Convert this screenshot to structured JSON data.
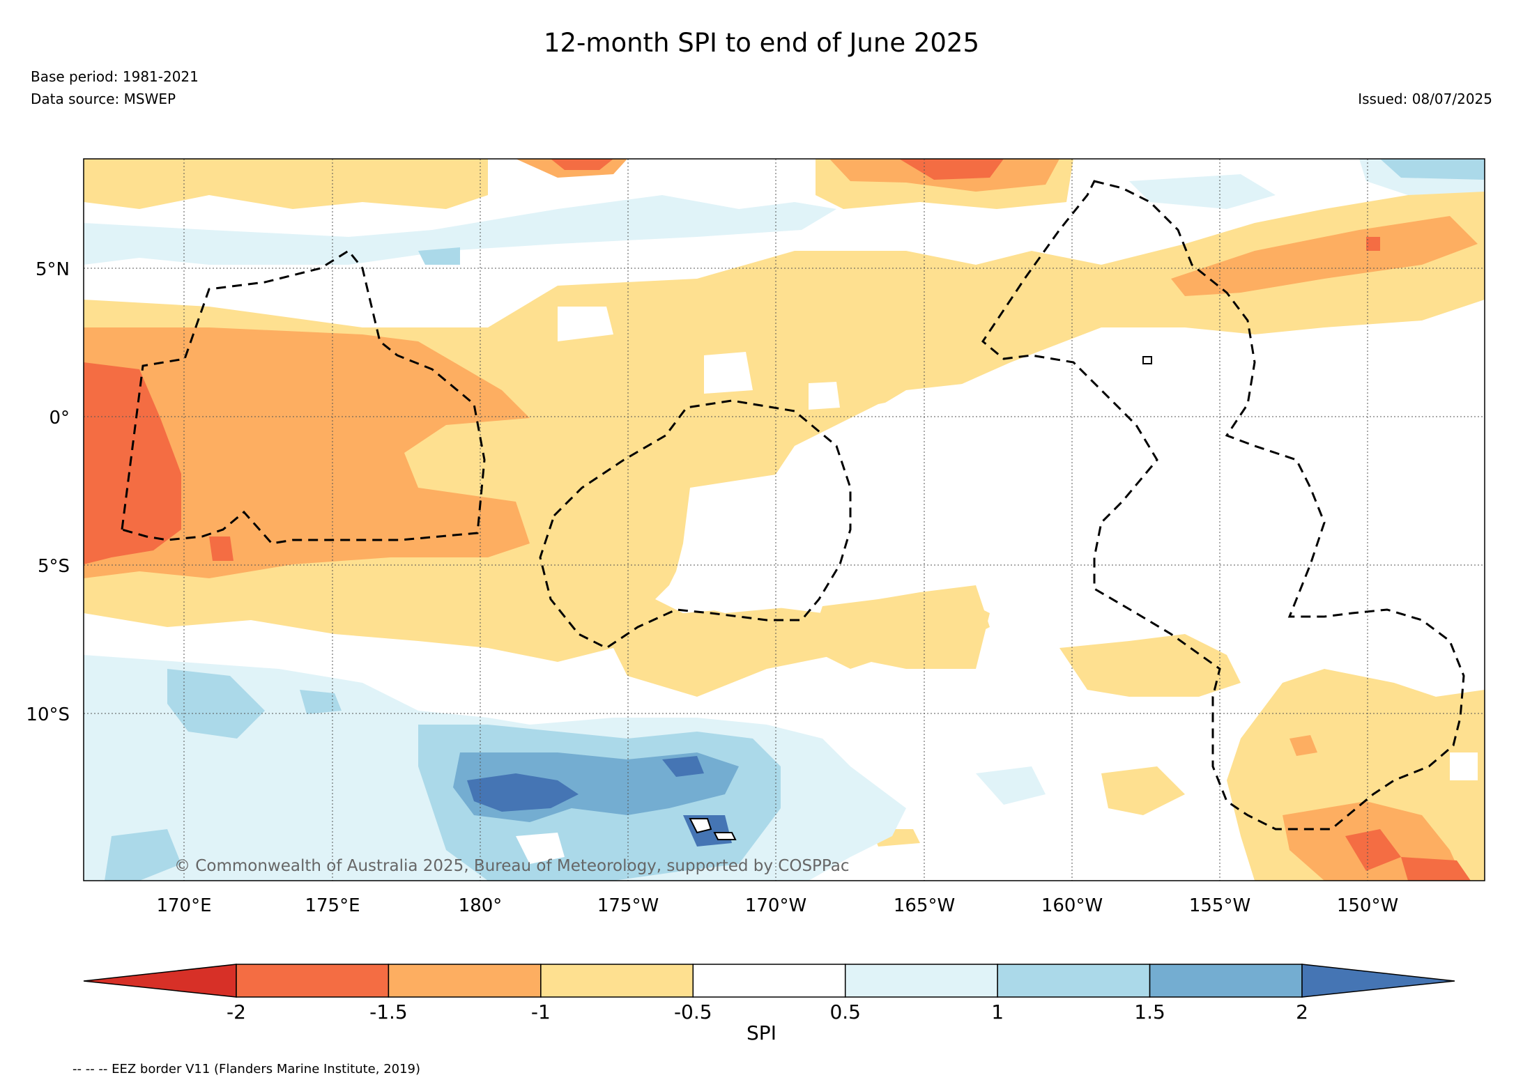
{
  "title": "12-month SPI to end of June 2025",
  "base_period": "Base period: 1981-2021",
  "data_source": "Data source: MSWEP",
  "issued": "Issued: 08/07/2025",
  "copyright": "© Commonwealth of Australia 2025, Bureau of Meteorology, supported by COSPPac",
  "legend_note": "-- -- -- EEZ border V11 (Flanders Marine Institute, 2019)",
  "map": {
    "lon_ticks": [
      "170°E",
      "175°E",
      "180°",
      "175°W",
      "170°W",
      "165°W",
      "160°W",
      "155°W",
      "150°W"
    ],
    "lat_ticks": [
      "5°N",
      "0°",
      "5°S",
      "10°S"
    ],
    "extent": {
      "lon": "167°E to 146°W",
      "lat": "15.5°S to 8.5°N"
    }
  },
  "colorbar": {
    "label": "SPI",
    "ticks": [
      "-2",
      "-1.5",
      "-1",
      "-0.5",
      "0.5",
      "1",
      "1.5",
      "2"
    ],
    "classes": [
      {
        "range": "< -2",
        "color": "#d73027"
      },
      {
        "range": "-2 to -1.5",
        "color": "#f46d43"
      },
      {
        "range": "-1.5 to -1",
        "color": "#fdae61"
      },
      {
        "range": "-1 to -0.5",
        "color": "#fee090"
      },
      {
        "range": "-0.5 to 0.5",
        "color": "#ffffff"
      },
      {
        "range": "0.5 to 1",
        "color": "#e0f3f8"
      },
      {
        "range": "1 to 1.5",
        "color": "#abd9e9"
      },
      {
        "range": "1.5 to 2",
        "color": "#74add1"
      },
      {
        "range": "> 2",
        "color": "#4575b4"
      }
    ]
  }
}
